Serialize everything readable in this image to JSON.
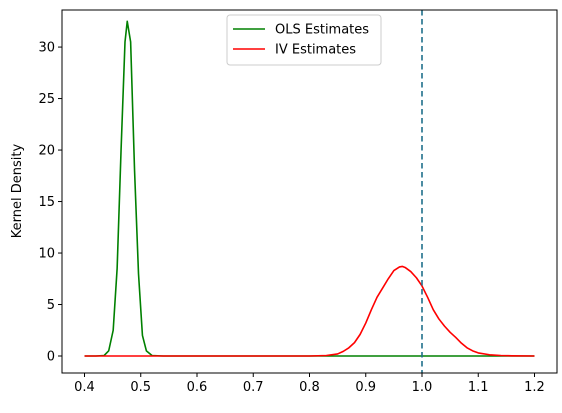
{
  "chart_data": {
    "type": "line",
    "title": "",
    "xlabel": "",
    "ylabel": "Kernel Density",
    "xlim": [
      0.36,
      1.24
    ],
    "ylim": [
      -1.65,
      33.6
    ],
    "xticks": [
      0.4,
      0.5,
      0.6,
      0.7,
      0.8,
      0.9,
      1.0,
      1.1,
      1.2
    ],
    "xtick_labels": [
      "0.4",
      "0.5",
      "0.6",
      "0.7",
      "0.8",
      "0.9",
      "1.0",
      "1.1",
      "1.2"
    ],
    "yticks": [
      0,
      5,
      10,
      15,
      20,
      25,
      30
    ],
    "ytick_labels": [
      "0",
      "5",
      "10",
      "15",
      "20",
      "25",
      "30"
    ],
    "grid": false,
    "legend_position": "upper-center",
    "reference_line": {
      "x": 1.0,
      "style": "dashed",
      "color": "#1f6f8b"
    },
    "series": [
      {
        "name": "OLS Estimates",
        "color": "#008000",
        "x": [
          0.4,
          0.42,
          0.435,
          0.443,
          0.451,
          0.458,
          0.465,
          0.472,
          0.476,
          0.482,
          0.489,
          0.496,
          0.503,
          0.51,
          0.52,
          0.54,
          0.6,
          0.7,
          0.8,
          0.9,
          1.0,
          1.1,
          1.2
        ],
        "y": [
          0.0,
          0.0,
          0.05,
          0.5,
          2.5,
          8.5,
          20.0,
          30.5,
          32.5,
          30.5,
          18.0,
          8.0,
          2.0,
          0.5,
          0.05,
          0.0,
          0.0,
          0.0,
          0.0,
          0.0,
          0.0,
          0.0,
          0.0
        ]
      },
      {
        "name": "IV Estimates",
        "color": "#ff0000",
        "x": [
          0.4,
          0.6,
          0.8,
          0.83,
          0.85,
          0.86,
          0.87,
          0.88,
          0.89,
          0.9,
          0.91,
          0.92,
          0.93,
          0.94,
          0.95,
          0.96,
          0.965,
          0.97,
          0.98,
          0.99,
          1.0,
          1.01,
          1.02,
          1.03,
          1.04,
          1.05,
          1.06,
          1.07,
          1.08,
          1.09,
          1.1,
          1.12,
          1.14,
          1.16,
          1.2
        ],
        "y": [
          0.0,
          0.0,
          0.0,
          0.05,
          0.2,
          0.45,
          0.8,
          1.3,
          2.1,
          3.2,
          4.5,
          5.7,
          6.6,
          7.5,
          8.3,
          8.65,
          8.7,
          8.6,
          8.2,
          7.6,
          6.8,
          5.7,
          4.5,
          3.6,
          2.9,
          2.3,
          1.8,
          1.25,
          0.8,
          0.5,
          0.3,
          0.12,
          0.05,
          0.02,
          0.0
        ]
      }
    ]
  }
}
